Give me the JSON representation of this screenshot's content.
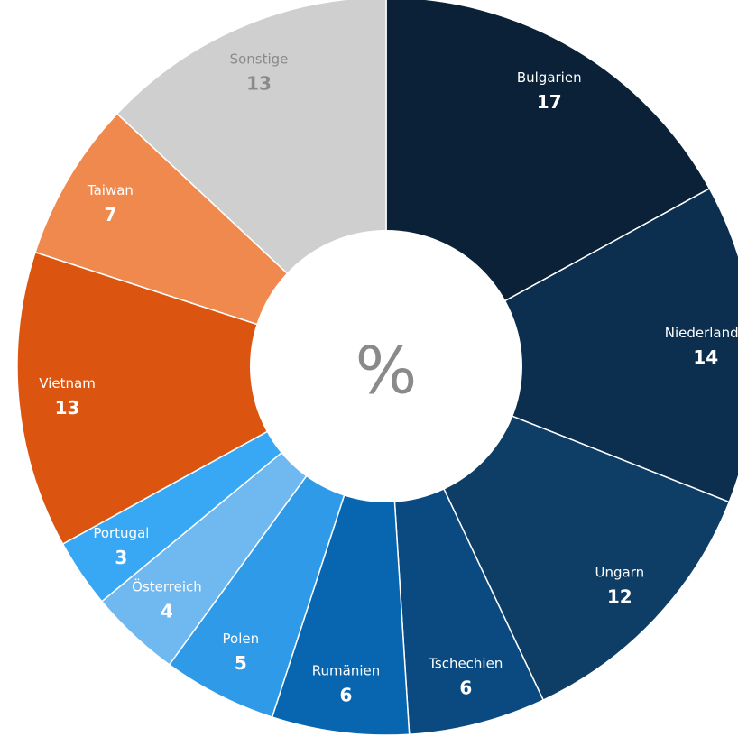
{
  "chart_data": {
    "type": "donut",
    "center_label": "%",
    "categories": [
      "Bulgarien",
      "Niederlande",
      "Ungarn",
      "Tschechien",
      "Rumänien",
      "Polen",
      "Österreich",
      "Portugal",
      "Vietnam",
      "Taiwan",
      "Sonstige"
    ],
    "values": [
      17,
      14,
      12,
      6,
      6,
      5,
      4,
      3,
      13,
      7,
      13
    ],
    "colors": [
      "#0a2138",
      "#0c2f4f",
      "#0e3d66",
      "#0a4a80",
      "#0866b0",
      "#2e9ae8",
      "#6fb8f0",
      "#38a8f5",
      "#db5510",
      "#f0894e",
      "#d0cfd0"
    ],
    "label_colors": [
      "#ffffff",
      "#ffffff",
      "#ffffff",
      "#ffffff",
      "#ffffff",
      "#ffffff",
      "#ffffff",
      "#ffffff",
      "#ffffff",
      "#ffffff",
      "#8a8a8a"
    ]
  }
}
